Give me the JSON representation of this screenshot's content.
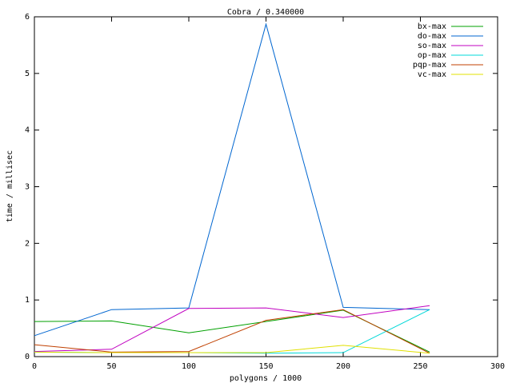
{
  "chart_data": {
    "type": "line",
    "title": "Cobra / 0.340000",
    "x_label": "polygons / 1000",
    "y_label": "time / millisec",
    "x": [
      0,
      50,
      100,
      150,
      200,
      256
    ],
    "series": [
      {
        "name": "bx-max",
        "color": "#00a000",
        "values": [
          0.62,
          0.63,
          0.42,
          0.62,
          0.82,
          0.08
        ]
      },
      {
        "name": "do-max",
        "color": "#0066d0",
        "values": [
          0.37,
          0.83,
          0.86,
          5.87,
          0.87,
          0.83
        ]
      },
      {
        "name": "so-max",
        "color": "#c000c0",
        "values": [
          0.09,
          0.13,
          0.85,
          0.86,
          0.69,
          0.9
        ]
      },
      {
        "name": "op-max",
        "color": "#00d8d8",
        "values": [
          0.08,
          0.07,
          0.07,
          0.06,
          0.07,
          0.83
        ]
      },
      {
        "name": "pqp-max",
        "color": "#c04000",
        "values": [
          0.21,
          0.08,
          0.09,
          0.64,
          0.83,
          0.06
        ]
      },
      {
        "name": "vc-max",
        "color": "#e0e000",
        "values": [
          0.08,
          0.07,
          0.07,
          0.07,
          0.2,
          0.06
        ]
      }
    ],
    "xlim": [
      0,
      300
    ],
    "xticks": [
      0,
      50,
      100,
      150,
      200,
      250,
      300
    ],
    "ylim": [
      0,
      6
    ],
    "yticks": [
      0,
      1,
      2,
      3,
      4,
      5,
      6
    ],
    "legend": "upper-right"
  }
}
